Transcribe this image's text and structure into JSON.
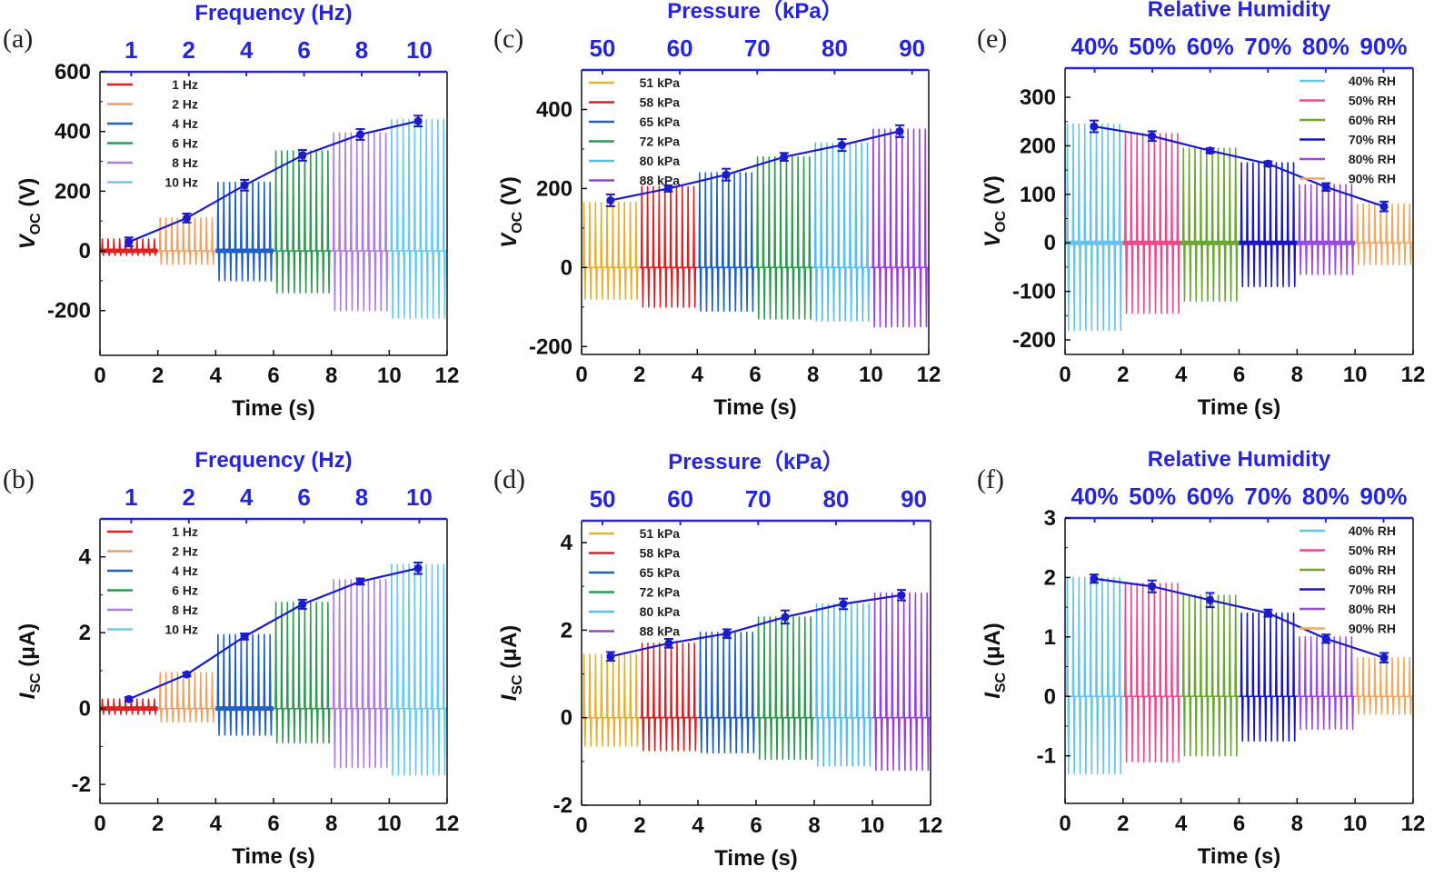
{
  "figure": {
    "colors": {
      "axis": "#111111",
      "top_axis": "#2525e0",
      "trend": "#1a1ad0"
    }
  },
  "chart_data": [
    {
      "type": "line",
      "panel_label": "(a)",
      "top_axis_title": "Frequency (Hz)",
      "top_ticks": [
        "1",
        "2",
        "4",
        "6",
        "8",
        "10"
      ],
      "xlabel": "Time (s)",
      "ylabel": {
        "sym": "V",
        "sub": "OC",
        "unit": " (V)"
      },
      "xlim": [
        0,
        12
      ],
      "xticks": [
        0,
        2,
        4,
        6,
        8,
        10,
        12
      ],
      "ylim": [
        -350,
        600
      ],
      "yticks": [
        -200,
        0,
        200,
        400,
        600
      ],
      "legend_position": "top-left",
      "series": [
        {
          "name": "1 Hz",
          "color": "#e02020",
          "x_range": [
            0,
            2
          ],
          "peak_pos": 40,
          "peak_neg": -15,
          "baseline_thick": true
        },
        {
          "name": "2 Hz",
          "color": "#f0a060",
          "x_range": [
            2,
            4
          ],
          "peak_pos": 110,
          "peak_neg": -45
        },
        {
          "name": "4 Hz",
          "color": "#1f5fc8",
          "x_range": [
            4,
            6
          ],
          "peak_pos": 230,
          "peak_neg": -100,
          "baseline_thick": true
        },
        {
          "name": "6 Hz",
          "color": "#2e9a52",
          "x_range": [
            6,
            8
          ],
          "peak_pos": 335,
          "peak_neg": -140
        },
        {
          "name": "8 Hz",
          "color": "#b07ee0",
          "x_range": [
            8,
            10
          ],
          "peak_pos": 395,
          "peak_neg": -200
        },
        {
          "name": "10 Hz",
          "color": "#66ccf2",
          "x_range": [
            10,
            12
          ],
          "peak_pos": 440,
          "peak_neg": -225
        }
      ],
      "trend": {
        "x": [
          1,
          3,
          5,
          7,
          9,
          11
        ],
        "y": [
          30,
          110,
          220,
          320,
          390,
          435
        ],
        "err": [
          15,
          15,
          18,
          18,
          18,
          18
        ]
      }
    },
    {
      "type": "line",
      "panel_label": "(b)",
      "top_axis_title": "Frequency (Hz)",
      "top_ticks": [
        "1",
        "2",
        "4",
        "6",
        "8",
        "10"
      ],
      "xlabel": "Time (s)",
      "ylabel": {
        "sym": "I",
        "sub": "SC",
        "unit": " (μA)"
      },
      "xlim": [
        0,
        12
      ],
      "xticks": [
        0,
        2,
        4,
        6,
        8,
        10,
        12
      ],
      "ylim": [
        -2.5,
        5
      ],
      "yticks": [
        -2,
        0,
        2,
        4
      ],
      "legend_position": "top-left",
      "series": [
        {
          "name": "1 Hz",
          "color": "#e02020",
          "x_range": [
            0,
            2
          ],
          "peak_pos": 0.25,
          "peak_neg": -0.15,
          "baseline_thick": true
        },
        {
          "name": "2 Hz",
          "color": "#f0a060",
          "x_range": [
            2,
            4
          ],
          "peak_pos": 0.95,
          "peak_neg": -0.35
        },
        {
          "name": "4 Hz",
          "color": "#1f5fc8",
          "x_range": [
            4,
            6
          ],
          "peak_pos": 1.95,
          "peak_neg": -0.7,
          "baseline_thick": true
        },
        {
          "name": "6 Hz",
          "color": "#2e9a52",
          "x_range": [
            6,
            8
          ],
          "peak_pos": 2.8,
          "peak_neg": -0.9
        },
        {
          "name": "8 Hz",
          "color": "#b07ee0",
          "x_range": [
            8,
            10
          ],
          "peak_pos": 3.4,
          "peak_neg": -1.55
        },
        {
          "name": "10 Hz",
          "color": "#66ccf2",
          "x_range": [
            10,
            12
          ],
          "peak_pos": 3.8,
          "peak_neg": -1.75
        }
      ],
      "trend": {
        "x": [
          1,
          3,
          5,
          7,
          9,
          11
        ],
        "y": [
          0.25,
          0.9,
          1.9,
          2.75,
          3.35,
          3.7
        ],
        "err": [
          0.05,
          0.05,
          0.08,
          0.12,
          0.08,
          0.15
        ]
      }
    },
    {
      "type": "line",
      "panel_label": "(c)",
      "top_axis_title": "Pressure（kPa）",
      "top_ticks": [
        "50",
        "60",
        "70",
        "80",
        "90"
      ],
      "xlabel": "Time (s)",
      "ylabel": {
        "sym": "V",
        "sub": "OC",
        "unit": " (V)"
      },
      "xlim": [
        0,
        12
      ],
      "xticks": [
        0,
        2,
        4,
        6,
        8,
        10,
        12
      ],
      "ylim": [
        -220,
        500
      ],
      "yticks": [
        -200,
        0,
        200,
        400
      ],
      "legend_position": "top-left",
      "series": [
        {
          "name": "51 kPa",
          "color": "#e8b030",
          "x_range": [
            0,
            2
          ],
          "peak_pos": 165,
          "peak_neg": -80
        },
        {
          "name": "58 kPa",
          "color": "#e02020",
          "x_range": [
            2,
            4
          ],
          "peak_pos": 205,
          "peak_neg": -100
        },
        {
          "name": "65 kPa",
          "color": "#1f5fc8",
          "x_range": [
            4,
            6
          ],
          "peak_pos": 240,
          "peak_neg": -110
        },
        {
          "name": "72 kPa",
          "color": "#2e9a52",
          "x_range": [
            6,
            8
          ],
          "peak_pos": 280,
          "peak_neg": -130
        },
        {
          "name": "80 kPa",
          "color": "#55bff2",
          "x_range": [
            8,
            10
          ],
          "peak_pos": 315,
          "peak_neg": -135
        },
        {
          "name": "88 kPa",
          "color": "#9a40e0",
          "x_range": [
            10,
            12
          ],
          "peak_pos": 350,
          "peak_neg": -150
        }
      ],
      "trend": {
        "x": [
          1,
          3,
          5,
          7,
          9,
          11
        ],
        "y": [
          170,
          200,
          235,
          280,
          310,
          345
        ],
        "err": [
          15,
          8,
          15,
          10,
          15,
          15
        ]
      }
    },
    {
      "type": "line",
      "panel_label": "(d)",
      "top_axis_title": "Pressure（kPa）",
      "top_ticks": [
        "50",
        "60",
        "70",
        "80",
        "90"
      ],
      "xlabel": "Time (s)",
      "ylabel": {
        "sym": "I",
        "sub": "SC",
        "unit": " (μA)"
      },
      "xlim": [
        0,
        12
      ],
      "xticks": [
        0,
        2,
        4,
        6,
        8,
        10,
        12
      ],
      "ylim": [
        -2,
        4.5
      ],
      "yticks": [
        -2,
        0,
        2,
        4
      ],
      "legend_position": "top-left",
      "series": [
        {
          "name": "51 kPa",
          "color": "#e8b030",
          "x_range": [
            0,
            2
          ],
          "peak_pos": 1.45,
          "peak_neg": -0.65
        },
        {
          "name": "58 kPa",
          "color": "#e02020",
          "x_range": [
            2,
            4
          ],
          "peak_pos": 1.7,
          "peak_neg": -0.75
        },
        {
          "name": "65 kPa",
          "color": "#1f5fc8",
          "x_range": [
            4,
            6
          ],
          "peak_pos": 1.95,
          "peak_neg": -0.8
        },
        {
          "name": "72 kPa",
          "color": "#2e9a52",
          "x_range": [
            6,
            8
          ],
          "peak_pos": 2.3,
          "peak_neg": -0.95
        },
        {
          "name": "80 kPa",
          "color": "#55bff2",
          "x_range": [
            8,
            10
          ],
          "peak_pos": 2.6,
          "peak_neg": -1.1
        },
        {
          "name": "88 kPa",
          "color": "#9a40e0",
          "x_range": [
            10,
            12
          ],
          "peak_pos": 2.85,
          "peak_neg": -1.2
        }
      ],
      "trend": {
        "x": [
          1,
          3,
          5,
          7,
          9,
          11
        ],
        "y": [
          1.4,
          1.7,
          1.92,
          2.3,
          2.6,
          2.8
        ],
        "err": [
          0.1,
          0.1,
          0.1,
          0.15,
          0.12,
          0.12
        ]
      }
    },
    {
      "type": "line",
      "panel_label": "(e)",
      "top_axis_title": "Relative Humidity",
      "top_ticks": [
        "40%",
        "50%",
        "60%",
        "70%",
        "80%",
        "90%"
      ],
      "xlabel": "Time (s)",
      "ylabel": {
        "sym": "V",
        "sub": "OC",
        "unit": " (V)"
      },
      "xlim": [
        0,
        12
      ],
      "xticks": [
        0,
        2,
        4,
        6,
        8,
        10,
        12
      ],
      "ylim": [
        -230,
        360
      ],
      "yticks": [
        -200,
        -100,
        0,
        100,
        200,
        300
      ],
      "legend_position": "top-right",
      "series": [
        {
          "name": "40% RH",
          "color": "#66c4ee",
          "x_range": [
            0,
            2
          ],
          "peak_pos": 245,
          "peak_neg": -180,
          "baseline_thick": true
        },
        {
          "name": "50% RH",
          "color": "#f04a8e",
          "x_range": [
            2,
            4
          ],
          "peak_pos": 225,
          "peak_neg": -145,
          "baseline_thick": true
        },
        {
          "name": "60% RH",
          "color": "#6aa832",
          "x_range": [
            4,
            6
          ],
          "peak_pos": 195,
          "peak_neg": -120,
          "baseline_thick": true
        },
        {
          "name": "70% RH",
          "color": "#1616c8",
          "x_range": [
            6,
            8
          ],
          "peak_pos": 165,
          "peak_neg": -90,
          "baseline_thick": true
        },
        {
          "name": "80% RH",
          "color": "#9a4ae0",
          "x_range": [
            8,
            10
          ],
          "peak_pos": 120,
          "peak_neg": -65,
          "baseline_thick": true
        },
        {
          "name": "90% RH",
          "color": "#f0a860",
          "x_range": [
            10,
            12
          ],
          "peak_pos": 80,
          "peak_neg": -45
        }
      ],
      "trend": {
        "x": [
          1,
          3,
          5,
          7,
          9,
          11
        ],
        "y": [
          240,
          220,
          190,
          163,
          115,
          75
        ],
        "err": [
          12,
          10,
          5,
          5,
          8,
          10
        ]
      }
    },
    {
      "type": "line",
      "panel_label": "(f)",
      "top_axis_title": "Relative Humidity",
      "top_ticks": [
        "40%",
        "50%",
        "60%",
        "70%",
        "80%",
        "90%"
      ],
      "xlabel": "Time (s)",
      "ylabel": {
        "sym": "I",
        "sub": "SC",
        "unit": " (μA)"
      },
      "xlim": [
        0,
        12
      ],
      "xticks": [
        0,
        2,
        4,
        6,
        8,
        10,
        12
      ],
      "ylim": [
        -1.8,
        3
      ],
      "yticks": [
        -1,
        0,
        1,
        2,
        3
      ],
      "legend_position": "top-right",
      "series": [
        {
          "name": "40% RH",
          "color": "#66c4ee",
          "x_range": [
            0,
            2
          ],
          "peak_pos": 2.0,
          "peak_neg": -1.3
        },
        {
          "name": "50% RH",
          "color": "#f04a8e",
          "x_range": [
            2,
            4
          ],
          "peak_pos": 1.9,
          "peak_neg": -1.1
        },
        {
          "name": "60% RH",
          "color": "#6aa832",
          "x_range": [
            4,
            6
          ],
          "peak_pos": 1.7,
          "peak_neg": -1.0
        },
        {
          "name": "70% RH",
          "color": "#1616c8",
          "x_range": [
            6,
            8
          ],
          "peak_pos": 1.4,
          "peak_neg": -0.75
        },
        {
          "name": "80% RH",
          "color": "#9a4ae0",
          "x_range": [
            8,
            10
          ],
          "peak_pos": 1.0,
          "peak_neg": -0.55
        },
        {
          "name": "90% RH",
          "color": "#f0a860",
          "x_range": [
            10,
            12
          ],
          "peak_pos": 0.65,
          "peak_neg": -0.3
        }
      ],
      "trend": {
        "x": [
          1,
          3,
          5,
          7,
          9,
          11
        ],
        "y": [
          1.98,
          1.85,
          1.62,
          1.4,
          0.97,
          0.65
        ],
        "err": [
          0.07,
          0.1,
          0.12,
          0.06,
          0.07,
          0.08
        ]
      }
    }
  ]
}
